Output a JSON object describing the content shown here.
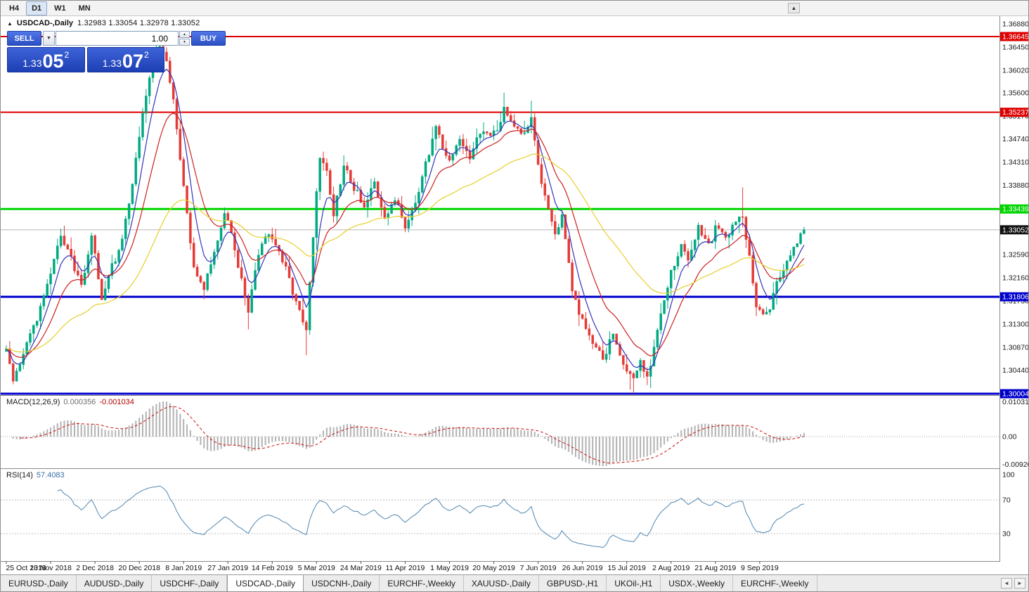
{
  "toolbar": {
    "timeframes": [
      {
        "label": "H4",
        "active": false
      },
      {
        "label": "D1",
        "active": true
      },
      {
        "label": "W1",
        "active": false
      },
      {
        "label": "MN",
        "active": false
      }
    ],
    "overflow_icon": "▲"
  },
  "chart_header": {
    "collapse_icon": "▲",
    "title": "USDCAD-,Daily",
    "ohlc": "1.32983 1.33054 1.32978 1.33052"
  },
  "trade_panel": {
    "sell_label": "SELL",
    "buy_label": "BUY",
    "volume": "1.00",
    "sell_price": {
      "base": "1.33",
      "pips": "05",
      "frac": "2"
    },
    "buy_price": {
      "base": "1.33",
      "pips": "07",
      "frac": "2"
    }
  },
  "macd_panel": {
    "name": "MACD(12,26,9)",
    "value_main": "0.000356",
    "value_signal": "-0.001034",
    "axis_top": "0.010311",
    "axis_zero": "0.00",
    "axis_bottom": "-0.009203"
  },
  "rsi_panel": {
    "name": "RSI(14)",
    "value": "57.4083",
    "axis_top": "100",
    "axis_upper": "70",
    "axis_lower": "30"
  },
  "tabs": [
    {
      "label": "EURUSD-,Daily",
      "active": false
    },
    {
      "label": "AUDUSD-,Daily",
      "active": false
    },
    {
      "label": "USDCHF-,Daily",
      "active": false
    },
    {
      "label": "USDCAD-,Daily",
      "active": true
    },
    {
      "label": "USDCNH-,Daily",
      "active": false
    },
    {
      "label": "EURCHF-,Weekly",
      "active": false
    },
    {
      "label": "XAUUSD-,Daily",
      "active": false
    },
    {
      "label": "GBPUSD-,H1",
      "active": false
    },
    {
      "label": "UKOil-,H1",
      "active": false
    },
    {
      "label": "USDX-,Weekly",
      "active": false
    },
    {
      "label": "EURCHF-,Weekly",
      "active": false
    }
  ],
  "chart_data": {
    "type": "candlestick",
    "symbol": "USDCAD",
    "timeframe": "Daily",
    "num_candles": 235,
    "current_price": {
      "value": 1.33052,
      "label": "1.33052",
      "color": "#111111"
    },
    "price_anchors": [
      [
        0,
        1.308
      ],
      [
        2,
        1.3022
      ],
      [
        4,
        1.3055
      ],
      [
        6,
        1.3098
      ],
      [
        9,
        1.314
      ],
      [
        13,
        1.3222
      ],
      [
        16,
        1.3298
      ],
      [
        19,
        1.3252
      ],
      [
        22,
        1.3196
      ],
      [
        25,
        1.3298
      ],
      [
        28,
        1.3176
      ],
      [
        31,
        1.3236
      ],
      [
        34,
        1.3286
      ],
      [
        37,
        1.3396
      ],
      [
        39,
        1.348
      ],
      [
        42,
        1.359
      ],
      [
        45,
        1.3644
      ],
      [
        47,
        1.3618
      ],
      [
        49,
        1.3542
      ],
      [
        52,
        1.3392
      ],
      [
        55,
        1.3236
      ],
      [
        58,
        1.3196
      ],
      [
        61,
        1.3264
      ],
      [
        64,
        1.3336
      ],
      [
        66,
        1.3302
      ],
      [
        68,
        1.3236
      ],
      [
        71,
        1.3156
      ],
      [
        74,
        1.3264
      ],
      [
        77,
        1.33
      ],
      [
        79,
        1.3282
      ],
      [
        82,
        1.3232
      ],
      [
        85,
        1.3166
      ],
      [
        88,
        1.3118
      ],
      [
        90,
        1.3298
      ],
      [
        92,
        1.3438
      ],
      [
        94,
        1.3416
      ],
      [
        96,
        1.3336
      ],
      [
        99,
        1.3424
      ],
      [
        102,
        1.3382
      ],
      [
        105,
        1.3346
      ],
      [
        108,
        1.3394
      ],
      [
        111,
        1.3326
      ],
      [
        114,
        1.3364
      ],
      [
        117,
        1.3306
      ],
      [
        120,
        1.3354
      ],
      [
        123,
        1.3424
      ],
      [
        126,
        1.3494
      ],
      [
        128,
        1.3462
      ],
      [
        130,
        1.3432
      ],
      [
        133,
        1.3474
      ],
      [
        136,
        1.3436
      ],
      [
        139,
        1.349
      ],
      [
        143,
        1.3482
      ],
      [
        146,
        1.3528
      ],
      [
        149,
        1.3502
      ],
      [
        152,
        1.3478
      ],
      [
        154,
        1.3514
      ],
      [
        156,
        1.3432
      ],
      [
        158,
        1.3362
      ],
      [
        161,
        1.3296
      ],
      [
        163,
        1.333
      ],
      [
        166,
        1.3196
      ],
      [
        169,
        1.3132
      ],
      [
        172,
        1.3092
      ],
      [
        175,
        1.3062
      ],
      [
        178,
        1.3112
      ],
      [
        181,
        1.3052
      ],
      [
        184,
        1.3026
      ],
      [
        186,
        1.3062
      ],
      [
        188,
        1.3036
      ],
      [
        190,
        1.3082
      ],
      [
        192,
        1.315
      ],
      [
        195,
        1.3222
      ],
      [
        198,
        1.328
      ],
      [
        200,
        1.3246
      ],
      [
        203,
        1.331
      ],
      [
        206,
        1.3272
      ],
      [
        208,
        1.3312
      ],
      [
        211,
        1.3292
      ],
      [
        214,
        1.3322
      ],
      [
        216,
        1.3332
      ],
      [
        218,
        1.3252
      ],
      [
        220,
        1.3166
      ],
      [
        222,
        1.3146
      ],
      [
        224,
        1.3162
      ],
      [
        226,
        1.3206
      ],
      [
        229,
        1.3246
      ],
      [
        231,
        1.3272
      ],
      [
        233,
        1.3292
      ],
      [
        234,
        1.33052
      ]
    ],
    "forced_extremes": [
      {
        "index": 44,
        "type": "high",
        "price": 1.3658
      },
      {
        "index": 45,
        "type": "high",
        "price": 1.3665
      },
      {
        "index": 71,
        "type": "low",
        "price": 1.312
      },
      {
        "index": 88,
        "type": "low",
        "price": 1.3072
      },
      {
        "index": 146,
        "type": "high",
        "price": 1.356
      },
      {
        "index": 154,
        "type": "high",
        "price": 1.3545
      },
      {
        "index": 183,
        "type": "low",
        "price": 1.3008
      },
      {
        "index": 184,
        "type": "low",
        "price": 1.3001
      },
      {
        "index": 216,
        "type": "high",
        "price": 1.3384
      }
    ],
    "x_labels": [
      {
        "index": 0,
        "label": "25 Oct 2018"
      },
      {
        "index": 13,
        "label": "13 Nov 2018"
      },
      {
        "index": 26,
        "label": "2 Dec 2018"
      },
      {
        "index": 39,
        "label": "20 Dec 2018"
      },
      {
        "index": 52,
        "label": "8 Jan 2019"
      },
      {
        "index": 65,
        "label": "27 Jan 2019"
      },
      {
        "index": 78,
        "label": "14 Feb 2019"
      },
      {
        "index": 91,
        "label": "5 Mar 2019"
      },
      {
        "index": 104,
        "label": "24 Mar 2019"
      },
      {
        "index": 117,
        "label": "11 Apr 2019"
      },
      {
        "index": 130,
        "label": "1 May 2019"
      },
      {
        "index": 143,
        "label": "20 May 2019"
      },
      {
        "index": 156,
        "label": "7 Jun 2019"
      },
      {
        "index": 169,
        "label": "26 Jun 2019"
      },
      {
        "index": 182,
        "label": "15 Jul 2019"
      },
      {
        "index": 195,
        "label": "2 Aug 2019"
      },
      {
        "index": 208,
        "label": "21 Aug 2019"
      },
      {
        "index": 221,
        "label": "9 Sep 2019"
      }
    ],
    "y_ticks": [
      1.3688,
      1.3645,
      1.3602,
      1.356,
      1.3517,
      1.3474,
      1.3431,
      1.3388,
      1.3259,
      1.3216,
      1.3173,
      1.313,
      1.3087,
      1.3044
    ],
    "levels": [
      {
        "price": 1.36645,
        "label": "1.36645",
        "color": "#dd0000",
        "width": 2
      },
      {
        "price": 1.35237,
        "label": "1.35237",
        "color": "#dd0000",
        "width": 2
      },
      {
        "price": 1.33439,
        "label": "1.33439",
        "color": "#00d500",
        "width": 3
      },
      {
        "price": 1.31806,
        "label": "1.31806",
        "color": "#0000cc",
        "width": 3
      },
      {
        "price": 1.30004,
        "label": "1.30004",
        "color": "#0000cc",
        "width": 3
      }
    ],
    "moving_averages": [
      {
        "period": 6,
        "type": "ema",
        "color": "#3434bb",
        "name": "fast-ma-blue"
      },
      {
        "period": 15,
        "type": "ema",
        "color": "#cc2020",
        "name": "medium-ma-red"
      },
      {
        "period": 48,
        "type": "ema",
        "color": "#e6cf2a",
        "name": "slow-ma-yellow"
      }
    ],
    "candle_up_color": "#00a982",
    "candle_down_color": "#e43a36",
    "macd": {
      "fast": 12,
      "slow": 26,
      "signal": 9
    },
    "rsi": {
      "period": 14,
      "levels": [
        70,
        30
      ]
    }
  }
}
